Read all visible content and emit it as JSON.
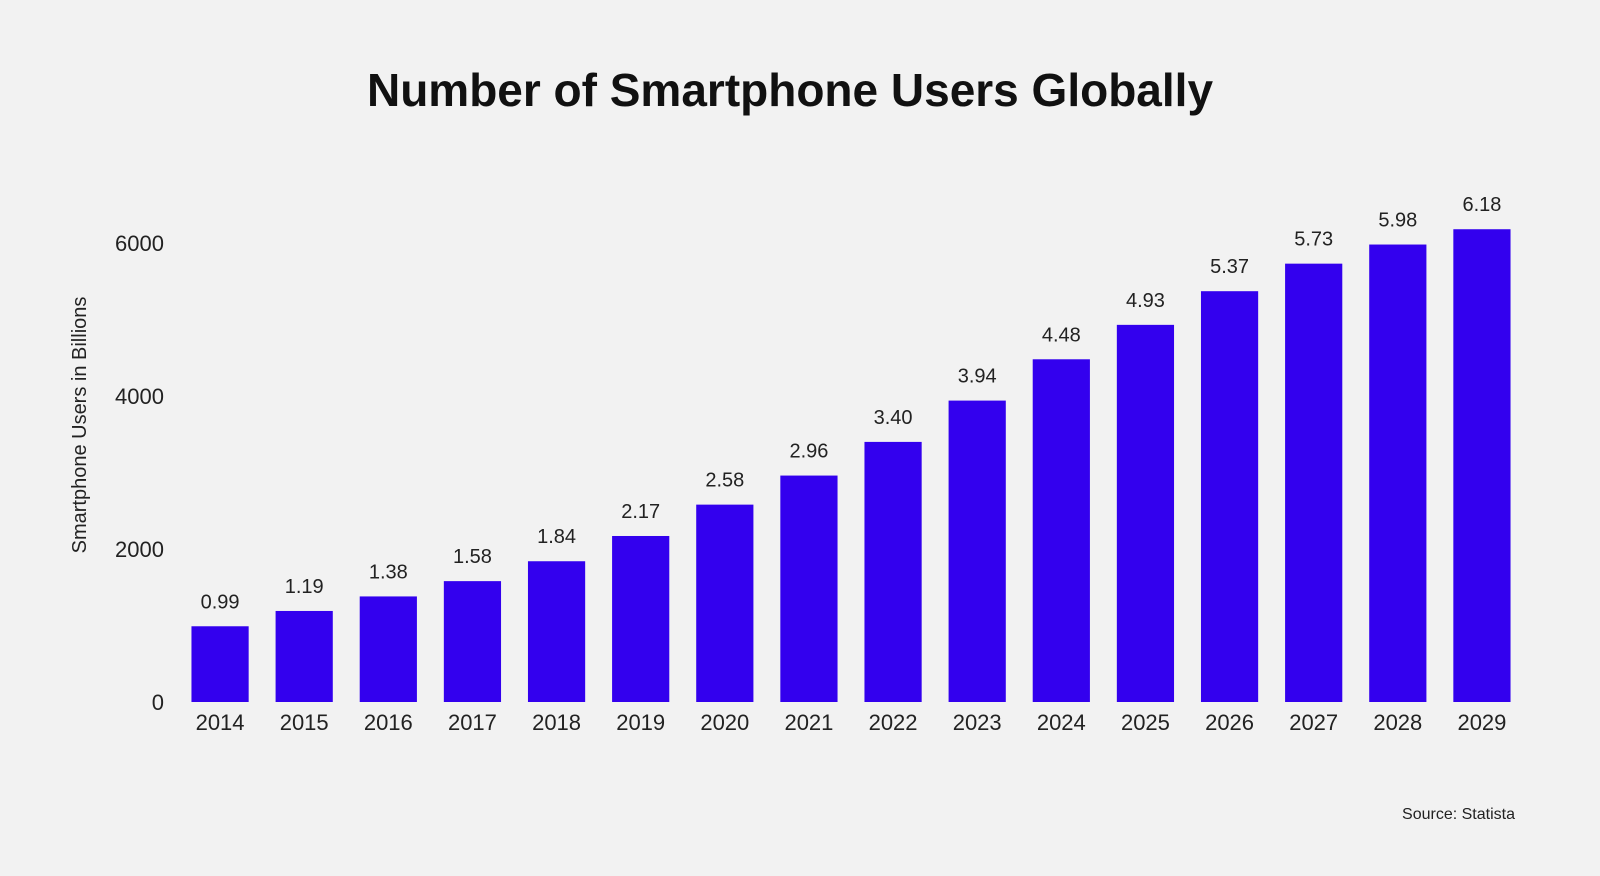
{
  "chart_data": {
    "type": "bar",
    "title": "Number of Smartphone Users Globally",
    "ylabel": "Smartphone Users in Billions",
    "xlabel": "",
    "ylim": [
      0,
      6000
    ],
    "yticks": [
      "0",
      "2000",
      "4000",
      "6000"
    ],
    "categories": [
      "2014",
      "2015",
      "2016",
      "2017",
      "2018",
      "2019",
      "2020",
      "2021",
      "2022",
      "2023",
      "2024",
      "2025",
      "2026",
      "2027",
      "2028",
      "2029"
    ],
    "values": [
      990,
      1190,
      1380,
      1580,
      1840,
      2170,
      2580,
      2960,
      3400,
      3940,
      4480,
      4930,
      5370,
      5730,
      5980,
      6180
    ],
    "data_labels": [
      "0.99",
      "1.19",
      "1.38",
      "1.58",
      "1.84",
      "2.17",
      "2.58",
      "2.96",
      "3.40",
      "3.94",
      "4.48",
      "4.93",
      "5.37",
      "5.73",
      "5.98",
      "6.18"
    ],
    "bar_color": "#3300ee",
    "grid": false,
    "legend": "none",
    "source": "Source: Statista"
  }
}
